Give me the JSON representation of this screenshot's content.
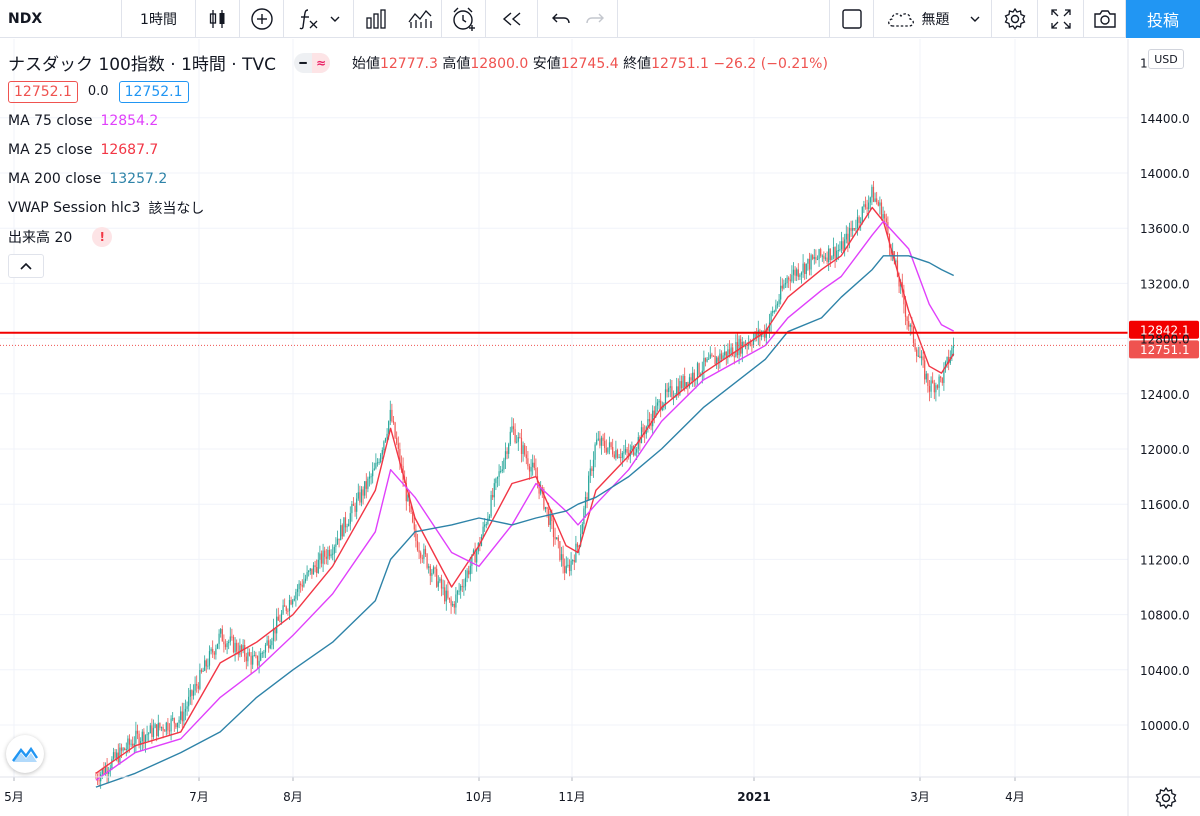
{
  "toolbar": {
    "symbol": "NDX",
    "interval": "1時間",
    "layout_name": "無題",
    "publish_label": "投稿",
    "icons": [
      "candlestick-icon",
      "plus-circle-icon",
      "fx-icon",
      "chevron-down-icon",
      "bar-chart-icon",
      "chart-layout-icon",
      "alarm-icon",
      "rewind-icon",
      "undo-icon",
      "redo-icon",
      "rectangle-icon",
      "cloud-icon",
      "gear-icon",
      "fullscreen-icon",
      "camera-icon"
    ]
  },
  "legend": {
    "title": "ナスダック 100指数 · 1時間 · TVC",
    "ohlc": [
      {
        "label": "始値",
        "value": "12777.3"
      },
      {
        "label": "高値",
        "value": "12800.0"
      },
      {
        "label": "安値",
        "value": "12745.4"
      },
      {
        "label": "終値",
        "value": "12751.1"
      }
    ],
    "change": "−26.2 (−0.21%)",
    "bid": "12752.1",
    "spread": "0.0",
    "ask": "12752.1",
    "indicators": [
      {
        "name": "MA 75 close",
        "value": "12854.2",
        "color": "#e040fb"
      },
      {
        "name": "MA 25 close",
        "value": "12687.7",
        "color": "#f23645"
      },
      {
        "name": "MA 200 close",
        "value": "13257.2",
        "color": "#2e83a8"
      },
      {
        "name": "VWAP Session hlc3",
        "value": "該当なし",
        "color": "#131722"
      }
    ],
    "volume_label": "出来高 20",
    "volume_warning": "!"
  },
  "currency": "USD",
  "colors": {
    "up": "#26a69a",
    "down": "#ef5350",
    "ma25": "#f23645",
    "ma75": "#e040fb",
    "ma200": "#2e83a8",
    "hline": "#f20000",
    "accent": "#2196f3"
  },
  "chart_data": {
    "type": "line",
    "title": "ナスダック 100指数 · 1時間 · TVC",
    "y_ticks": [
      10000,
      10400,
      10800,
      11200,
      11600,
      12000,
      12400,
      12800,
      13200,
      13600,
      14000,
      14400
    ],
    "y_top_tick_partial": "1",
    "x_ticks": [
      "5月",
      "7月",
      "8月",
      "10月",
      "11月",
      "2021",
      "3月",
      "4月"
    ],
    "ylim": [
      9700,
      14800
    ],
    "horizontal_line": {
      "value": 12842.1,
      "label": "12842.1"
    },
    "last_price": {
      "value": 12751.1,
      "label": "12751.1"
    },
    "x_dates": [
      "2020-05-28",
      "2020-06-10",
      "2020-06-25",
      "2020-07-08",
      "2020-07-20",
      "2020-08-01",
      "2020-08-14",
      "2020-08-28",
      "2020-09-02",
      "2020-09-10",
      "2020-09-22",
      "2020-10-01",
      "2020-10-12",
      "2020-10-20",
      "2020-10-30",
      "2020-11-03",
      "2020-11-09",
      "2020-11-20",
      "2020-12-01",
      "2020-12-15",
      "2021-01-05",
      "2021-01-13",
      "2021-01-25",
      "2021-02-01",
      "2021-02-12",
      "2021-02-16",
      "2021-02-25",
      "2021-03-04",
      "2021-03-08",
      "2021-03-12"
    ],
    "series": [
      {
        "name": "NDX",
        "values": [
          9620,
          9900,
          10050,
          10650,
          10450,
          10950,
          11300,
          11850,
          12250,
          11350,
          10850,
          11300,
          12150,
          11800,
          11100,
          11300,
          12050,
          11950,
          12350,
          12600,
          12850,
          13250,
          13400,
          13450,
          13850,
          13700,
          12900,
          12450,
          12500,
          12751
        ]
      },
      {
        "name": "MA 25 close",
        "values": [
          9650,
          9850,
          9950,
          10450,
          10600,
          10800,
          11150,
          11700,
          12150,
          11500,
          11000,
          11300,
          11750,
          11800,
          11300,
          11250,
          11700,
          11950,
          12300,
          12550,
          12850,
          13100,
          13300,
          13400,
          13750,
          13650,
          13000,
          12600,
          12550,
          12690
        ]
      },
      {
        "name": "MA 75 close",
        "values": [
          9600,
          9800,
          9900,
          10200,
          10400,
          10650,
          10950,
          11400,
          11850,
          11650,
          11250,
          11150,
          11450,
          11750,
          11550,
          11450,
          11600,
          11850,
          12200,
          12500,
          12750,
          12950,
          13150,
          13250,
          13550,
          13650,
          13450,
          13050,
          12900,
          12854
        ]
      },
      {
        "name": "MA 200 close",
        "values": [
          9550,
          9650,
          9800,
          9950,
          10200,
          10400,
          10600,
          10900,
          11200,
          11400,
          11450,
          11500,
          11450,
          11500,
          11550,
          11600,
          11650,
          11800,
          12000,
          12300,
          12650,
          12850,
          12950,
          13100,
          13300,
          13400,
          13400,
          13350,
          13300,
          13257
        ]
      }
    ]
  }
}
